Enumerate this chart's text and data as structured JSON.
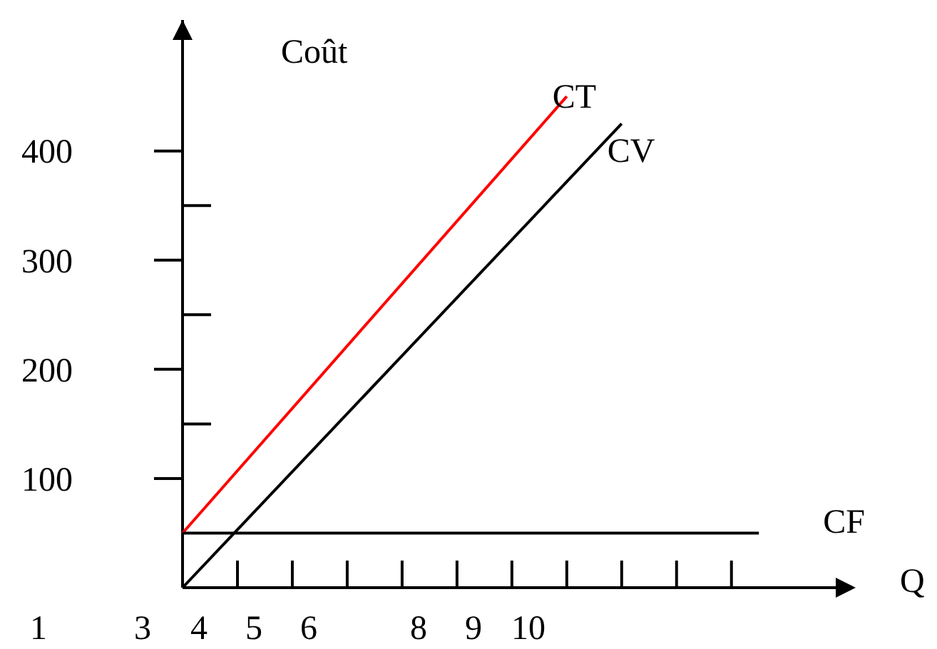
{
  "chart_data": {
    "type": "line",
    "xlabel": "Q",
    "ylabel": "Coût",
    "xlim": [
      3.7,
      15.6
    ],
    "ylim": [
      0,
      520
    ],
    "annotations": [
      "1",
      "3"
    ],
    "xticks": [
      4,
      5,
      6,
      8,
      9,
      10
    ],
    "yticks": [
      100,
      200,
      300,
      400
    ],
    "series": [
      {
        "name": "CT",
        "color": "#ff0000",
        "x": [
          3.7,
          10.7
        ],
        "values": [
          50,
          450
        ]
      },
      {
        "name": "CV",
        "color": "#000000",
        "x": [
          3.7,
          11.7
        ],
        "values": [
          0,
          425
        ]
      },
      {
        "name": "CF",
        "color": "#000000",
        "x": [
          3.7,
          14.2
        ],
        "values": [
          50,
          50
        ]
      }
    ],
    "grid": false,
    "marker": "none",
    "line_style": "solid"
  }
}
